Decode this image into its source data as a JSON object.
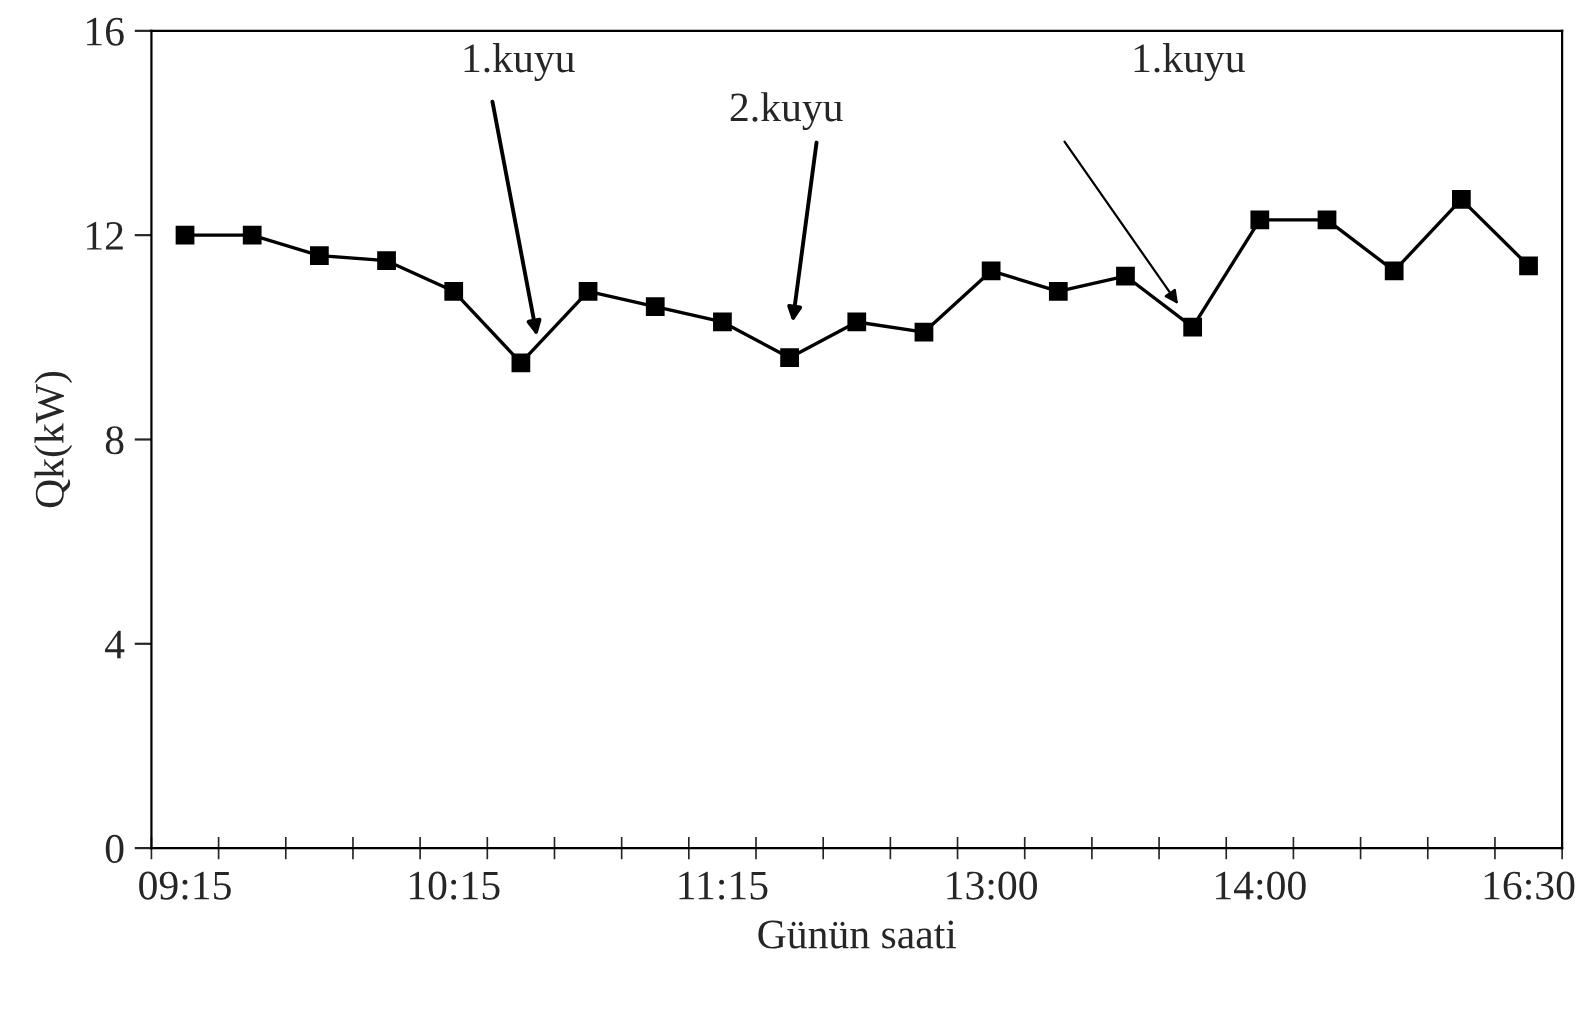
{
  "chart_data": {
    "type": "line",
    "xlabel": "Günün saati",
    "ylabel": "Qk(kW)",
    "categories": [
      "09:15",
      null,
      null,
      null,
      "10:15",
      null,
      null,
      null,
      "11:15",
      null,
      null,
      null,
      "13:00",
      null,
      null,
      null,
      "14:00",
      null,
      null,
      null,
      "16:30"
    ],
    "series": [
      {
        "color": "#000000",
        "values": [
          12.0,
          12.0,
          11.6,
          11.5,
          10.9,
          9.5,
          10.9,
          10.6,
          10.3,
          9.6,
          10.3,
          10.1,
          11.3,
          10.9,
          11.2,
          10.2,
          12.3,
          12.3,
          11.3,
          12.7,
          11.4
        ]
      }
    ],
    "ylim": [
      0,
      16
    ],
    "yticks": [
      0,
      4,
      8,
      12,
      16
    ],
    "grid": false,
    "legend": false,
    "marker": "square",
    "line_style": "solid",
    "annotations": [
      "1.kuyu",
      "2.kuyu",
      "1.kuyu"
    ]
  }
}
